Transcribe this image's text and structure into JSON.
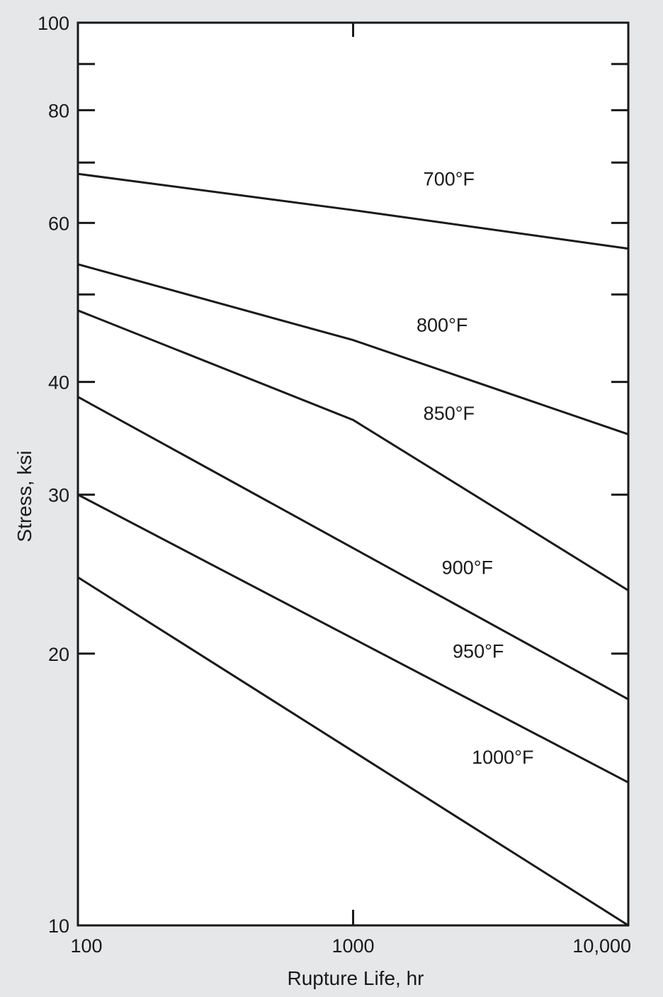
{
  "chart_data": {
    "type": "line",
    "title": "",
    "xlabel": "Rupture Life, hr",
    "ylabel": "Stress, ksi",
    "x_scale": "log",
    "y_scale": "log",
    "xlim": [
      100,
      10000
    ],
    "ylim": [
      10,
      100
    ],
    "grid": false,
    "legend": "none",
    "x_ticks": [
      {
        "value": 100,
        "label": "100"
      },
      {
        "value": 1000,
        "label": "1000"
      },
      {
        "value": 10000,
        "label": "10,000"
      }
    ],
    "y_ticks": [
      {
        "value": 10,
        "label": "10"
      },
      {
        "value": 20,
        "label": "20"
      },
      {
        "value": 30,
        "label": "30"
      },
      {
        "value": 40,
        "label": "40"
      },
      {
        "value": 60,
        "label": "60"
      },
      {
        "value": 80,
        "label": "80"
      },
      {
        "value": 100,
        "label": "100"
      }
    ],
    "series": [
      {
        "name": "700°F",
        "label_at": [
          1800,
          66
        ],
        "x": [
          100,
          1000,
          10000
        ],
        "y": [
          68,
          62,
          56.2
        ]
      },
      {
        "name": "800°F",
        "label_at": [
          1700,
          45.5
        ],
        "x": [
          100,
          1000,
          10000
        ],
        "y": [
          54,
          44.5,
          35
        ]
      },
      {
        "name": "850°F",
        "label_at": [
          1800,
          36.3
        ],
        "x": [
          100,
          1000,
          10000
        ],
        "y": [
          48,
          36.3,
          23.5
        ]
      },
      {
        "name": "900°F",
        "label_at": [
          2100,
          24.5
        ],
        "x": [
          100,
          10000
        ],
        "y": [
          38.5,
          17.8
        ]
      },
      {
        "name": "950°F",
        "label_at": [
          2300,
          19.8
        ],
        "x": [
          100,
          10000
        ],
        "y": [
          30,
          14.4
        ]
      },
      {
        "name": "1000°F",
        "label_at": [
          2700,
          15.1
        ],
        "x": [
          100,
          10000
        ],
        "y": [
          24.3,
          10
        ]
      }
    ],
    "colors": {
      "background": "#e6e7e8",
      "plot": "#ffffff",
      "line": "#1a1a1a"
    }
  }
}
